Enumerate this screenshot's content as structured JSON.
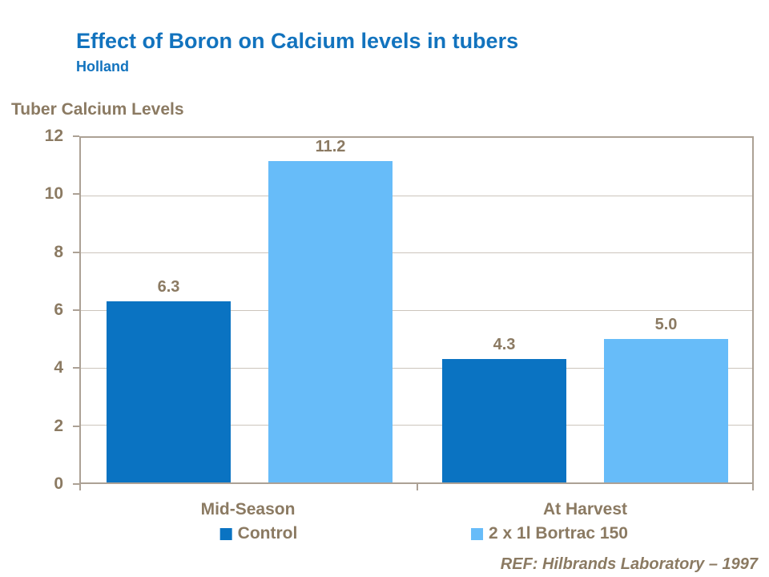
{
  "header": {
    "title": "Effect of Boron on Calcium levels in tubers",
    "subtitle": "Holland"
  },
  "chart_data": {
    "type": "bar",
    "title": "Tuber Calcium Levels",
    "categories": [
      "Mid-Season",
      "At Harvest"
    ],
    "series": [
      {
        "name": "Control",
        "color": "#0A73C2",
        "values": [
          6.3,
          4.3
        ],
        "labels": [
          "6.3",
          "4.3"
        ]
      },
      {
        "name": "2 x 1l Bortrac 150",
        "color": "#67BCF9",
        "values": [
          11.2,
          5.0
        ],
        "labels": [
          "11.2",
          "5.0"
        ]
      }
    ],
    "ylim": [
      0,
      12
    ],
    "ytick_interval": 2,
    "ytick_labels": [
      "12",
      "10",
      "8",
      "6",
      "4",
      "2",
      "0"
    ],
    "grid": true,
    "legend_position": "bottom"
  },
  "footer": {
    "ref": "REF: Hilbrands Laboratory – 1997"
  },
  "colors": {
    "title_blue": "#1273BE",
    "text_brown": "#8B7A62",
    "bar_control": "#0A73C2",
    "bar_bortrac": "#67BCF9",
    "gridline": "#CCC5BC",
    "axis": "#ACA195"
  }
}
